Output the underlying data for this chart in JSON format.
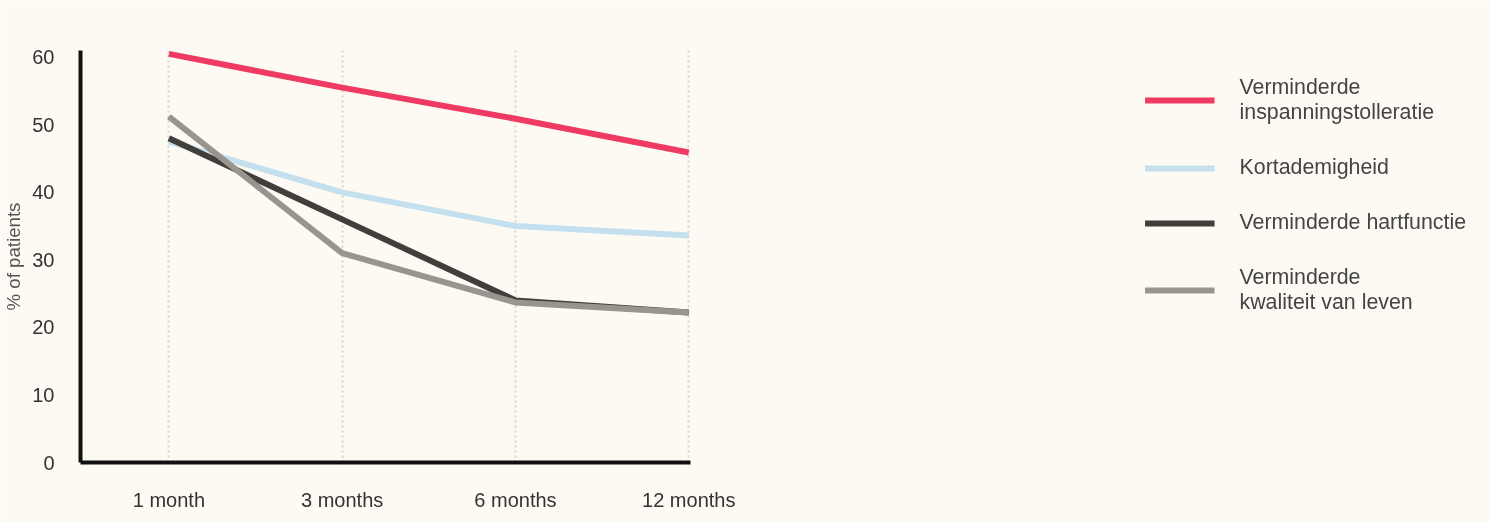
{
  "chart_data": {
    "type": "line",
    "ylabel": "% of patients",
    "categories": [
      "1 month",
      "3 months",
      "6 months",
      "12 months"
    ],
    "ylim": [
      0,
      61
    ],
    "yticks": [
      0,
      10,
      20,
      30,
      40,
      50,
      60
    ],
    "grid": "x",
    "legend": "right",
    "marker": "none",
    "line_style": "solid",
    "series": [
      {
        "name": "Verminderde inspanningstolleratie",
        "color": "#ef3b63",
        "values": [
          60.5,
          55.5,
          50.9,
          45.9
        ]
      },
      {
        "name": "Kortademigheid",
        "color": "#c4e0ee",
        "values": [
          47.5,
          40,
          35,
          33.6
        ]
      },
      {
        "name": "Verminderde hartfunctie",
        "color": "#413e3b",
        "values": [
          48,
          36,
          24,
          22.2
        ]
      },
      {
        "name": "Verminderde kwaliteit van leven",
        "color": "#9a948f",
        "values": [
          51.2,
          31,
          23.7,
          22.2
        ]
      }
    ]
  }
}
